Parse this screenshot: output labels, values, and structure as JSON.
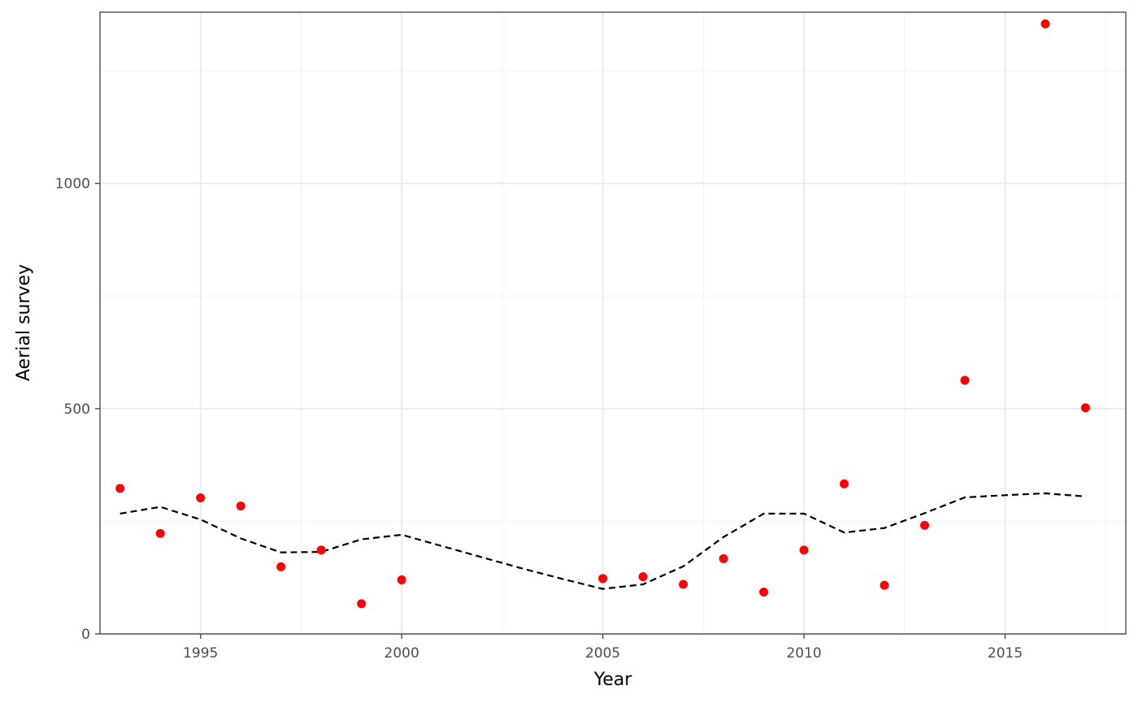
{
  "chart_data": {
    "type": "scatter",
    "title": "",
    "xlabel": "Year",
    "ylabel": "Aerial survey",
    "xlim": [
      1992.5,
      2018.0
    ],
    "ylim": [
      0,
      1380
    ],
    "x_ticks": [
      1995,
      2000,
      2005,
      2010,
      2015
    ],
    "x_minor_ticks": [
      1992.5,
      1997.5,
      2002.5,
      2007.5,
      2012.5,
      2017.5
    ],
    "y_ticks": [
      0,
      500,
      1000
    ],
    "y_minor_ticks": [
      250,
      750,
      1250
    ],
    "grid": true,
    "legend": "none",
    "colors": {
      "points": "#ff0000",
      "line": "#000000",
      "grid_major": "#ebebeb",
      "grid_minor": "#f2f2f2",
      "panel_border": "#333333"
    },
    "series": [
      {
        "type": "scatter",
        "x": [
          1993,
          1994,
          1995,
          1996,
          1997,
          1998,
          1999,
          2000,
          2005,
          2006,
          2007,
          2008,
          2009,
          2010,
          2011,
          2012,
          2013,
          2014,
          2016,
          2017
        ],
        "y": [
          323,
          223,
          302,
          284,
          149,
          186,
          67,
          120,
          123,
          127,
          110,
          167,
          93,
          186,
          333,
          108,
          241,
          563,
          1354,
          502
        ]
      },
      {
        "type": "line",
        "style": "dashed",
        "x": [
          1993,
          1994,
          1995,
          1996,
          1997,
          1998,
          1999,
          2000,
          2001,
          2002,
          2003,
          2004,
          2005,
          2006,
          2007,
          2008,
          2009,
          2010,
          2011,
          2012,
          2013,
          2014,
          2015,
          2016,
          2017
        ],
        "y": [
          267,
          282,
          254,
          212,
          181,
          182,
          210,
          220,
          195,
          170,
          145,
          122,
          100,
          110,
          150,
          215,
          267,
          267,
          225,
          235,
          268,
          303,
          308,
          312,
          305
        ]
      }
    ]
  }
}
